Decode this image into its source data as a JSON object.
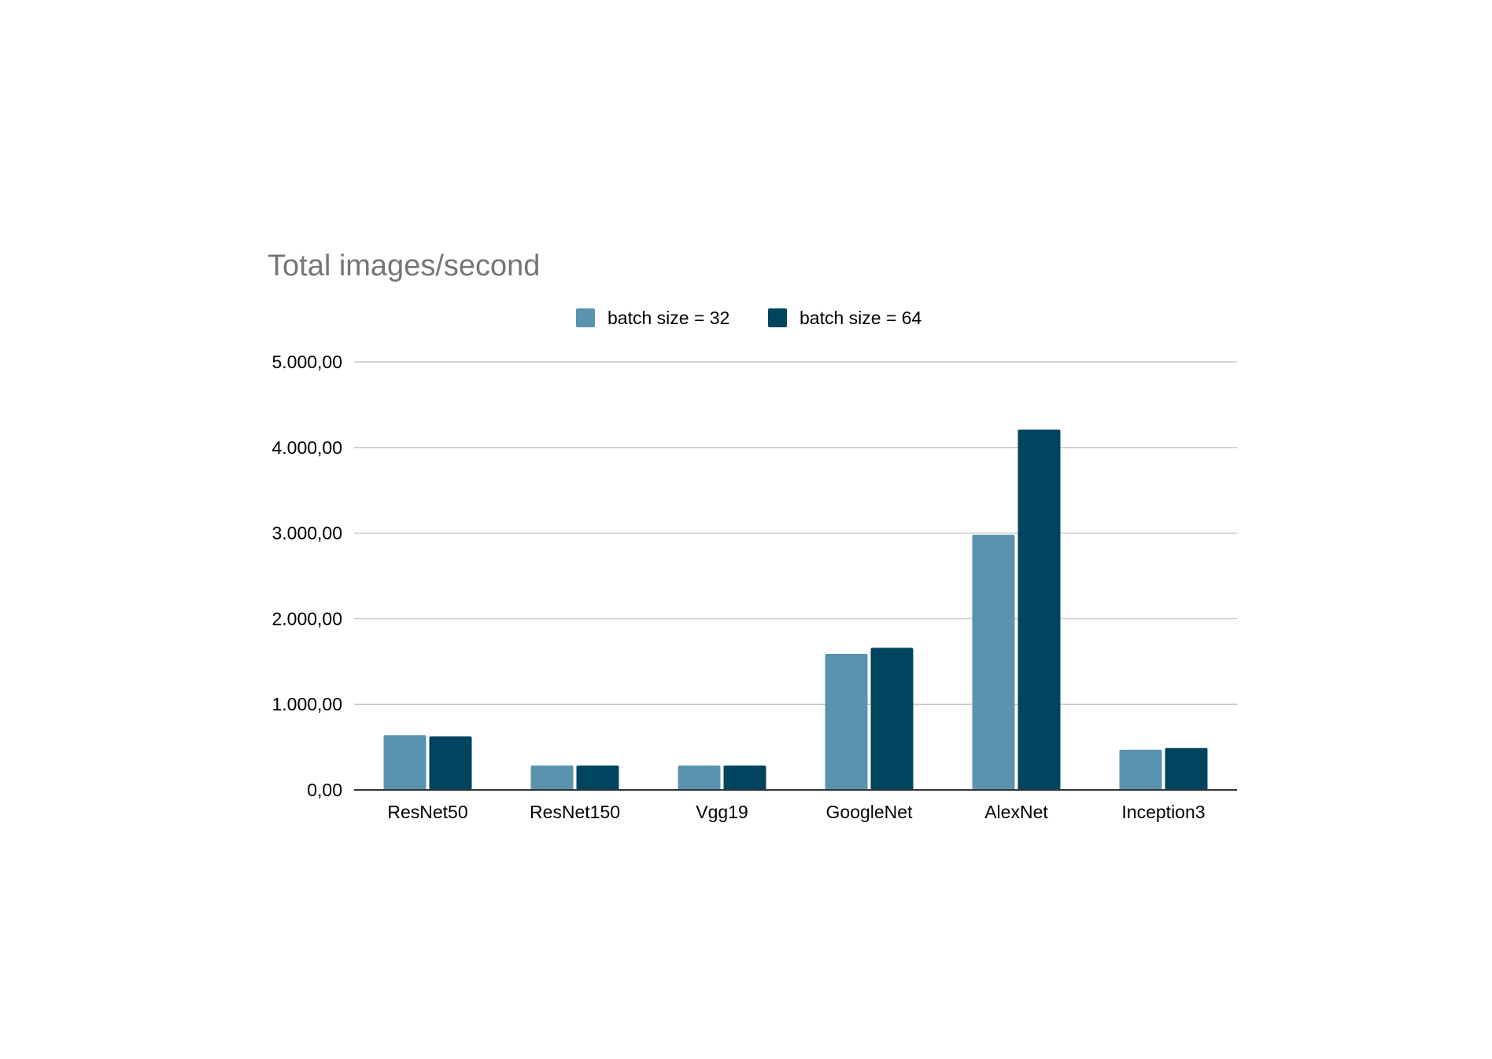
{
  "chart_data": {
    "type": "bar",
    "title": "Total images/second",
    "xlabel": "",
    "ylabel": "",
    "categories": [
      "ResNet50",
      "ResNet150",
      "Vgg19",
      "GoogleNet",
      "AlexNet",
      "Inception3"
    ],
    "series": [
      {
        "name": "batch size = 32",
        "color": "#5a93b0",
        "values": [
          640,
          285,
          285,
          1590,
          2980,
          470
        ]
      },
      {
        "name": "batch size = 64",
        "color": "#00445f",
        "values": [
          625,
          285,
          285,
          1660,
          4210,
          490
        ]
      }
    ],
    "ylim": [
      0,
      5000
    ],
    "yticks": [
      "0,00",
      "1.000,00",
      "2.000,00",
      "3.000,00",
      "4.000,00",
      "5.000,00"
    ],
    "ytick_values": [
      0,
      1000,
      2000,
      3000,
      4000,
      5000
    ],
    "grid": true,
    "legend_position": "top"
  }
}
